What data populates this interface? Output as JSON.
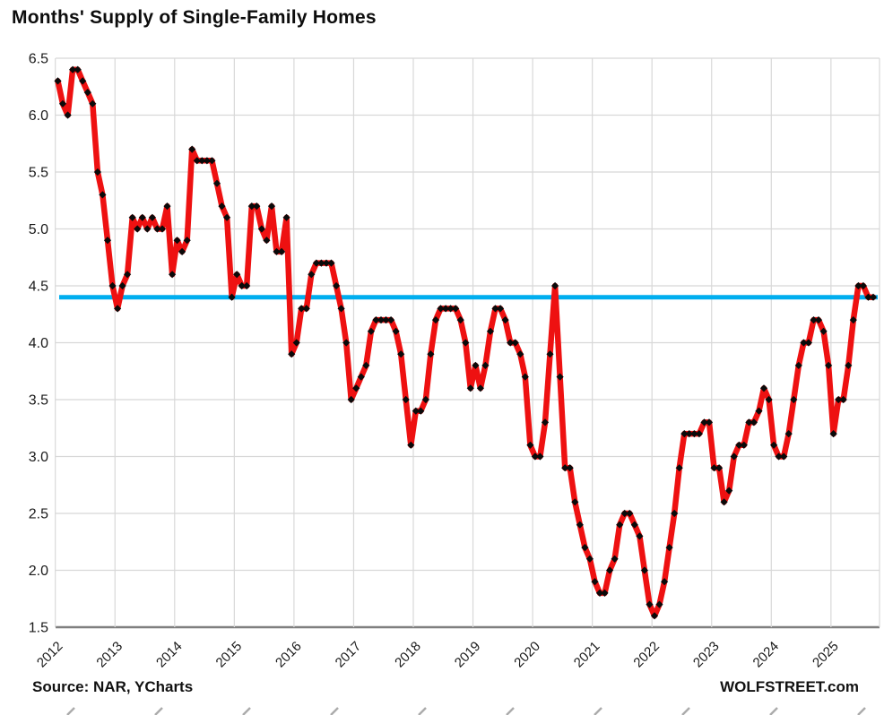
{
  "page": {
    "title": "Months' Supply of Single-Family Homes"
  },
  "footer": {
    "source": "Source: NAR, YCharts",
    "branding": "WOLFSTREET.com"
  },
  "colors": {
    "series_red": "#ee1111",
    "marker_black": "#0a0a0a",
    "reference_blue": "#00AEEF",
    "gridline_gray": "#d8d8d8",
    "axis_gray": "#7f7f7f",
    "background": "#ffffff"
  },
  "chart_data": {
    "type": "line",
    "title": "Months' Supply of Single-Family Homes",
    "xlabel": "",
    "ylabel": "",
    "x_unit": "month",
    "start_month": "2012-01",
    "end_month": "2025-09",
    "ylim": [
      1.5,
      6.5
    ],
    "grid": true,
    "legend_position": "none",
    "y_tick_labels": [
      "6.5",
      "6.0",
      "5.5",
      "5.0",
      "4.5",
      "4.0",
      "3.5",
      "3.0",
      "2.5",
      "2.0",
      "1.5"
    ],
    "y_ticks": [
      6.5,
      6.0,
      5.5,
      5.0,
      4.5,
      4.0,
      3.5,
      3.0,
      2.5,
      2.0,
      1.5
    ],
    "year_ticks": [
      "2012",
      "2013",
      "2014",
      "2015",
      "2016",
      "2017",
      "2018",
      "2019",
      "2020",
      "2021",
      "2022",
      "2023",
      "2024",
      "2025"
    ],
    "reference_line": {
      "value": 4.4,
      "color": "#00AEEF"
    },
    "series": [
      {
        "name": "Months' supply of single-family homes",
        "color": "#ee1111",
        "marker": "black-diamond",
        "monthly_values_by_year": {
          "2012": [
            6.3,
            6.1,
            6.0,
            6.4,
            6.4,
            6.3,
            6.2,
            6.1,
            5.5,
            5.3,
            4.9,
            4.5
          ],
          "2013": [
            4.3,
            4.5,
            4.6,
            5.1,
            5.0,
            5.1,
            5.0,
            5.1,
            5.0,
            5.0,
            5.2,
            4.6
          ],
          "2014": [
            4.9,
            4.8,
            4.9,
            5.7,
            5.6,
            5.6,
            5.6,
            5.6,
            5.4,
            5.2,
            5.1,
            4.4
          ],
          "2015": [
            4.6,
            4.5,
            4.5,
            5.2,
            5.2,
            5.0,
            4.9,
            5.2,
            4.8,
            4.8,
            5.1,
            3.9
          ],
          "2016": [
            4.0,
            4.3,
            4.3,
            4.6,
            4.7,
            4.7,
            4.7,
            4.7,
            4.5,
            4.3,
            4.0,
            3.5
          ],
          "2017": [
            3.6,
            3.7,
            3.8,
            4.1,
            4.2,
            4.2,
            4.2,
            4.2,
            4.1,
            3.9,
            3.5,
            3.1
          ],
          "2018": [
            3.4,
            3.4,
            3.5,
            3.9,
            4.2,
            4.3,
            4.3,
            4.3,
            4.3,
            4.2,
            4.0,
            3.6
          ],
          "2019": [
            3.8,
            3.6,
            3.8,
            4.1,
            4.3,
            4.3,
            4.2,
            4.0,
            4.0,
            3.9,
            3.7,
            3.1
          ],
          "2020": [
            3.0,
            3.0,
            3.3,
            3.9,
            4.5,
            3.7,
            2.9,
            2.9,
            2.6,
            2.4,
            2.2,
            2.1
          ],
          "2021": [
            1.9,
            1.8,
            1.8,
            2.0,
            2.1,
            2.4,
            2.5,
            2.5,
            2.4,
            2.3,
            2.0,
            1.7
          ],
          "2022": [
            1.6,
            1.7,
            1.9,
            2.2,
            2.5,
            2.9,
            3.2,
            3.2,
            3.2,
            3.2,
            3.3,
            3.3
          ],
          "2023": [
            2.9,
            2.9,
            2.6,
            2.7,
            3.0,
            3.1,
            3.1,
            3.3,
            3.3,
            3.4,
            3.6,
            3.5
          ],
          "2024": [
            3.1,
            3.0,
            3.0,
            3.2,
            3.5,
            3.8,
            4.0,
            4.0,
            4.2,
            4.2,
            4.1,
            3.8
          ],
          "2025": [
            3.2,
            3.5,
            3.5,
            3.8,
            4.2,
            4.5,
            4.5,
            4.4,
            4.4
          ]
        }
      }
    ]
  }
}
